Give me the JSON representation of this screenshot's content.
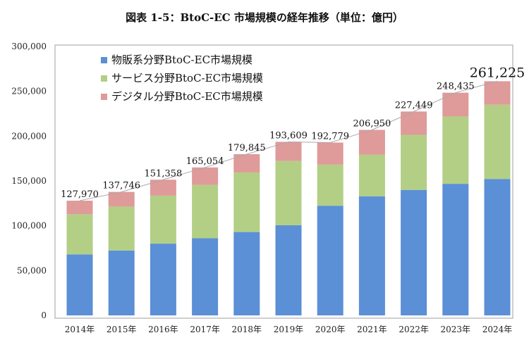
{
  "chart_data": {
    "type": "bar",
    "stacked": true,
    "title": "図表 1-5：BtoC-EC 市場規模の経年推移（単位：億円）",
    "xlabel": "",
    "ylabel": "",
    "ylim": [
      0,
      300000
    ],
    "yticks": [
      "0",
      "50,000",
      "100,000",
      "150,000",
      "200,000",
      "250,000",
      "300,000"
    ],
    "yticks_values": [
      0,
      50000,
      100000,
      150000,
      200000,
      250000,
      300000
    ],
    "categories": [
      "2014年",
      "2015年",
      "2016年",
      "2017年",
      "2018年",
      "2019年",
      "2020年",
      "2021年",
      "2022年",
      "2023年",
      "2024年"
    ],
    "series": [
      {
        "name": "物販系分野BtoC-EC市場規模",
        "color": "#5b8fd6",
        "values": [
          68043,
          72398,
          80043,
          86008,
          92992,
          100515,
          122333,
          132865,
          139997,
          146760,
          152194
        ]
      },
      {
        "name": "サービス分野BtoC-EC市場規模",
        "color": "#b2cf85",
        "values": [
          44816,
          49014,
          53532,
          59568,
          66471,
          71672,
          45832,
          46424,
          61477,
          75169,
          82798
        ]
      },
      {
        "name": "デジタル分野BtoC-EC市場規模",
        "color": "#df9a9a",
        "values": [
          15111,
          16334,
          17782,
          19478,
          20382,
          21422,
          24614,
          27661,
          25974,
          26506,
          26233
        ]
      }
    ],
    "totals": [
      127970,
      137746,
      151358,
      165054,
      179845,
      193609,
      192779,
      206950,
      227449,
      248435,
      261225
    ],
    "total_labels": [
      "127,970",
      "137,746",
      "151,358",
      "165,054",
      "179,845",
      "193,609",
      "192,779",
      "206,950",
      "227,449",
      "248,435",
      "261,225"
    ],
    "legend": "top-left",
    "grid": false
  }
}
